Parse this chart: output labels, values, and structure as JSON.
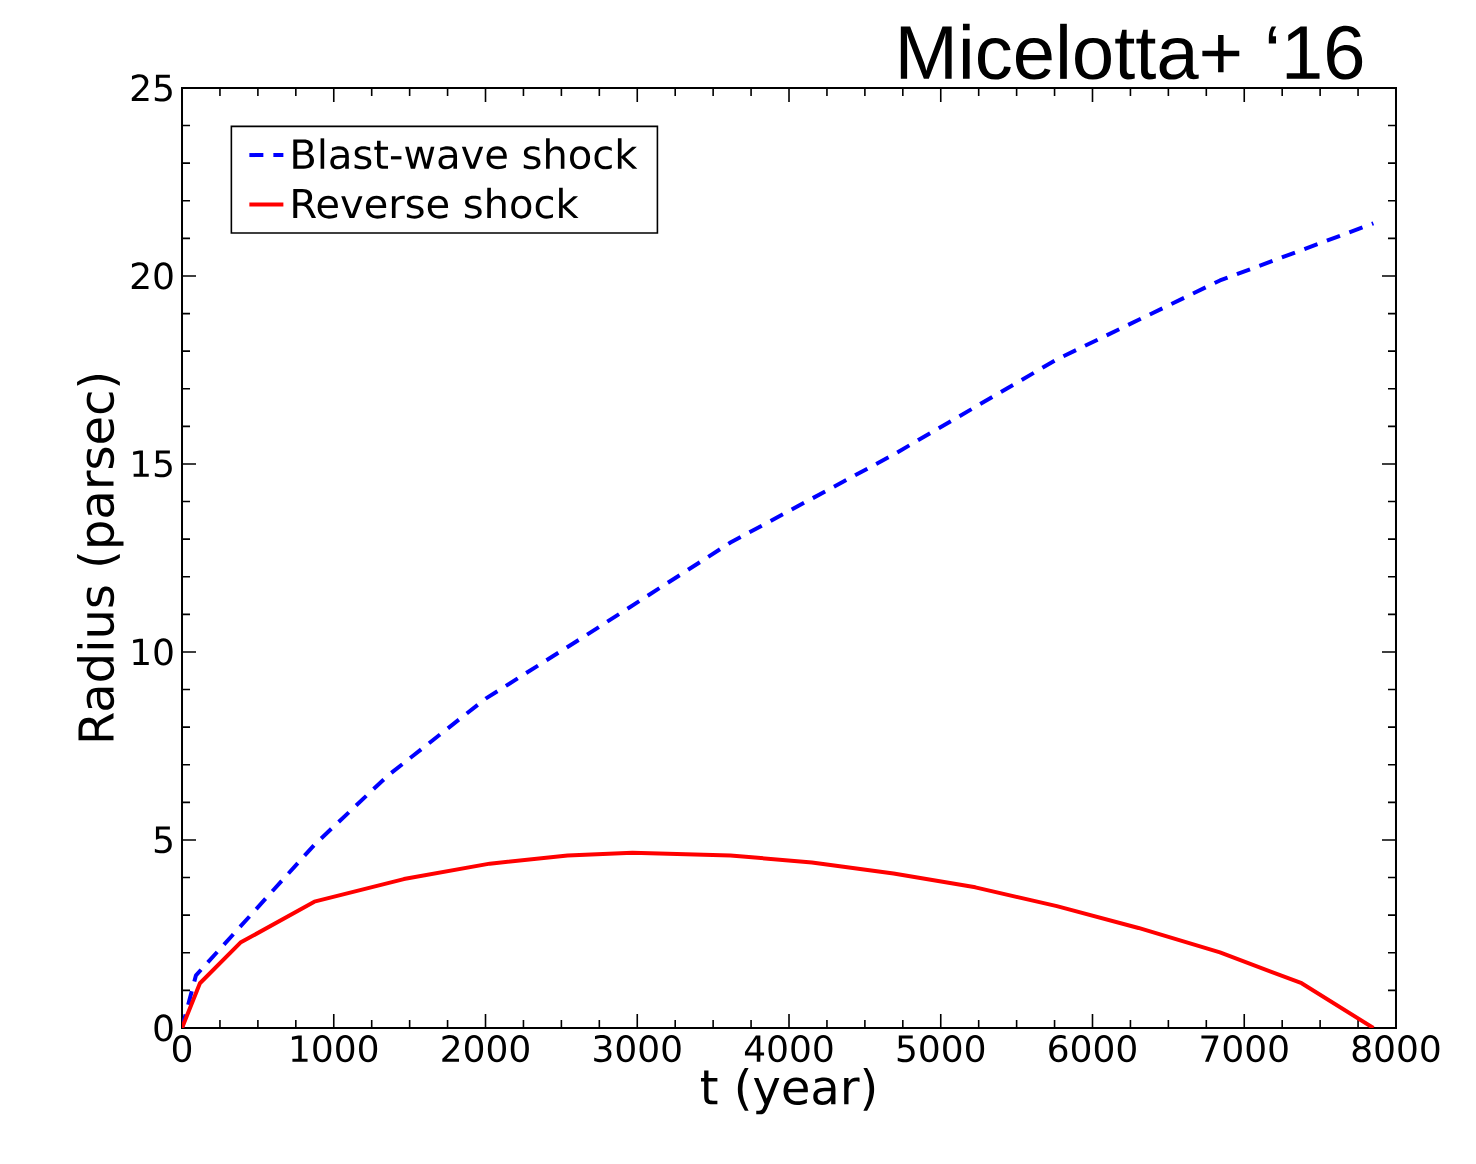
{
  "chart_data": {
    "type": "line",
    "title": "Micelotta+ ‘16",
    "xlabel": "t (year)",
    "ylabel": "Radius (parsec)",
    "xlim": [
      0,
      8000
    ],
    "ylim": [
      0,
      25
    ],
    "xticks": [
      0,
      1000,
      2000,
      3000,
      4000,
      5000,
      6000,
      7000,
      8000
    ],
    "yticks": [
      0,
      5,
      10,
      15,
      20,
      25
    ],
    "grid": false,
    "legend": "top left",
    "series": [
      {
        "name": "Blast-wave shock",
        "color": "#0000ff",
        "line_style": "dashed",
        "x": [
          0,
          92,
          385,
          872,
          1356,
          2001,
          2646,
          2862,
          3614,
          4689,
          5765,
          6840,
          7851
        ],
        "values": [
          0,
          1.4,
          2.7,
          4.87,
          6.71,
          8.76,
          10.4,
          10.96,
          12.91,
          15.25,
          17.78,
          19.88,
          21.4
        ]
      },
      {
        "name": "Reverse shock",
        "color": "#ff0000",
        "line_style": "solid",
        "x": [
          0,
          118,
          385,
          872,
          1462,
          2028,
          2541,
          2968,
          3614,
          4151,
          4689,
          5228,
          5765,
          6303,
          6840,
          7378,
          7851
        ],
        "values": [
          0,
          1.19,
          2.27,
          3.36,
          3.96,
          4.37,
          4.59,
          4.66,
          4.59,
          4.4,
          4.11,
          3.74,
          3.24,
          2.66,
          2.01,
          1.19,
          0
        ]
      }
    ]
  }
}
